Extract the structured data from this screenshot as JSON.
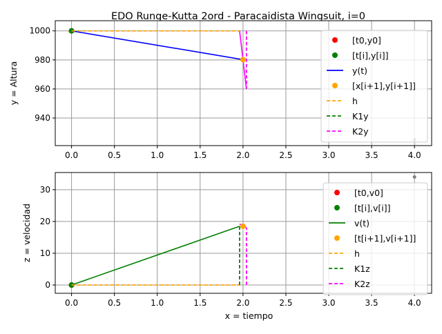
{
  "title": "EDO Runge-Kutta 2ord - Paracaidista Wingsuit, i=0",
  "chart_data": [
    {
      "type": "line",
      "ylabel": "y = Altura",
      "xlabel": "",
      "xlim": [
        -0.19,
        4.2
      ],
      "ylim": [
        921,
        1007
      ],
      "xticks": [
        "0.0",
        "0.5",
        "1.0",
        "1.5",
        "2.0",
        "2.5",
        "3.0",
        "3.5",
        "4.0"
      ],
      "xtick_values": [
        0,
        0.5,
        1,
        1.5,
        2,
        2.5,
        3,
        3.5,
        4
      ],
      "yticks": [
        "940",
        "960",
        "980",
        "1000"
      ],
      "ytick_values": [
        940,
        960,
        980,
        1000
      ],
      "grid": true,
      "legend_position": "upper-right",
      "series": [
        {
          "name": "[t0,y0]",
          "kind": "point",
          "color": "#ff0000",
          "x": [
            0
          ],
          "y": [
            1000
          ]
        },
        {
          "name": "[t[i],y[i]]",
          "kind": "point",
          "color": "#008000",
          "x": [
            0
          ],
          "y": [
            1000
          ]
        },
        {
          "name": "y(t)",
          "kind": "line",
          "color": "#0000ff",
          "x": [
            0,
            2
          ],
          "y": [
            1000,
            980.2
          ]
        },
        {
          "name": "[x[i+1],y[i+1]]",
          "kind": "point",
          "color": "#ffa500",
          "x": [
            2
          ],
          "y": [
            980.2
          ]
        },
        {
          "name": "h",
          "kind": "dash",
          "color": "#ffa500",
          "x": [
            0,
            1.96
          ],
          "y": [
            1000,
            1000
          ]
        },
        {
          "name": "K1y",
          "kind": "dash",
          "color": "#008000",
          "x": [
            1.96,
            1.96
          ],
          "y": [
            1000,
            1000
          ]
        },
        {
          "name": "K2y",
          "kind": "dash",
          "color": "#ff00ff",
          "x": [
            2.04,
            2.04
          ],
          "y": [
            1000,
            960
          ]
        }
      ],
      "extra": [
        {
          "kind": "line",
          "color": "#ff00ff",
          "x": [
            1.96,
            2.04
          ],
          "y": [
            1000,
            960
          ]
        },
        {
          "kind": "point",
          "color": "#808080",
          "x": [
            4
          ],
          "y": [
            925
          ]
        }
      ]
    },
    {
      "type": "line",
      "ylabel": "z = velocidad",
      "xlabel": "x = tiempo",
      "xlim": [
        -0.19,
        4.2
      ],
      "ylim": [
        -2.6,
        35.4
      ],
      "xticks": [
        "0.0",
        "0.5",
        "1.0",
        "1.5",
        "2.0",
        "2.5",
        "3.0",
        "3.5",
        "4.0"
      ],
      "xtick_values": [
        0,
        0.5,
        1,
        1.5,
        2,
        2.5,
        3,
        3.5,
        4
      ],
      "yticks": [
        "0",
        "10",
        "20",
        "30"
      ],
      "ytick_values": [
        0,
        10,
        20,
        30
      ],
      "grid": true,
      "legend_position": "upper-right",
      "series": [
        {
          "name": "[t0,v0]",
          "kind": "point",
          "color": "#ff0000",
          "x": [
            0
          ],
          "y": [
            0
          ]
        },
        {
          "name": "[t[i],v[i]]",
          "kind": "point",
          "color": "#008000",
          "x": [
            0
          ],
          "y": [
            0
          ]
        },
        {
          "name": "v(t)",
          "kind": "line",
          "color": "#008000",
          "x": [
            0,
            1.96
          ],
          "y": [
            0,
            18.5
          ]
        },
        {
          "name": "[t[i+1],v[i+1]]",
          "kind": "point",
          "color": "#ffa500",
          "x": [
            2
          ],
          "y": [
            18.5
          ]
        },
        {
          "name": "h",
          "kind": "dash",
          "color": "#ffa500",
          "x": [
            0,
            1.96
          ],
          "y": [
            0,
            0
          ]
        },
        {
          "name": "K1z",
          "kind": "dash",
          "color": "#008000",
          "x": [
            1.96,
            1.96
          ],
          "y": [
            0,
            18.5
          ]
        },
        {
          "name": "K2z",
          "kind": "dash",
          "color": "#ff00ff",
          "x": [
            2.04,
            2.04
          ],
          "y": [
            0,
            18
          ]
        }
      ],
      "extra": [
        {
          "kind": "line",
          "color": "#ff00ff",
          "x": [
            1.96,
            2.04
          ],
          "y": [
            19.2,
            18
          ]
        },
        {
          "kind": "point",
          "color": "#808080",
          "x": [
            4
          ],
          "y": [
            34
          ]
        }
      ]
    }
  ]
}
